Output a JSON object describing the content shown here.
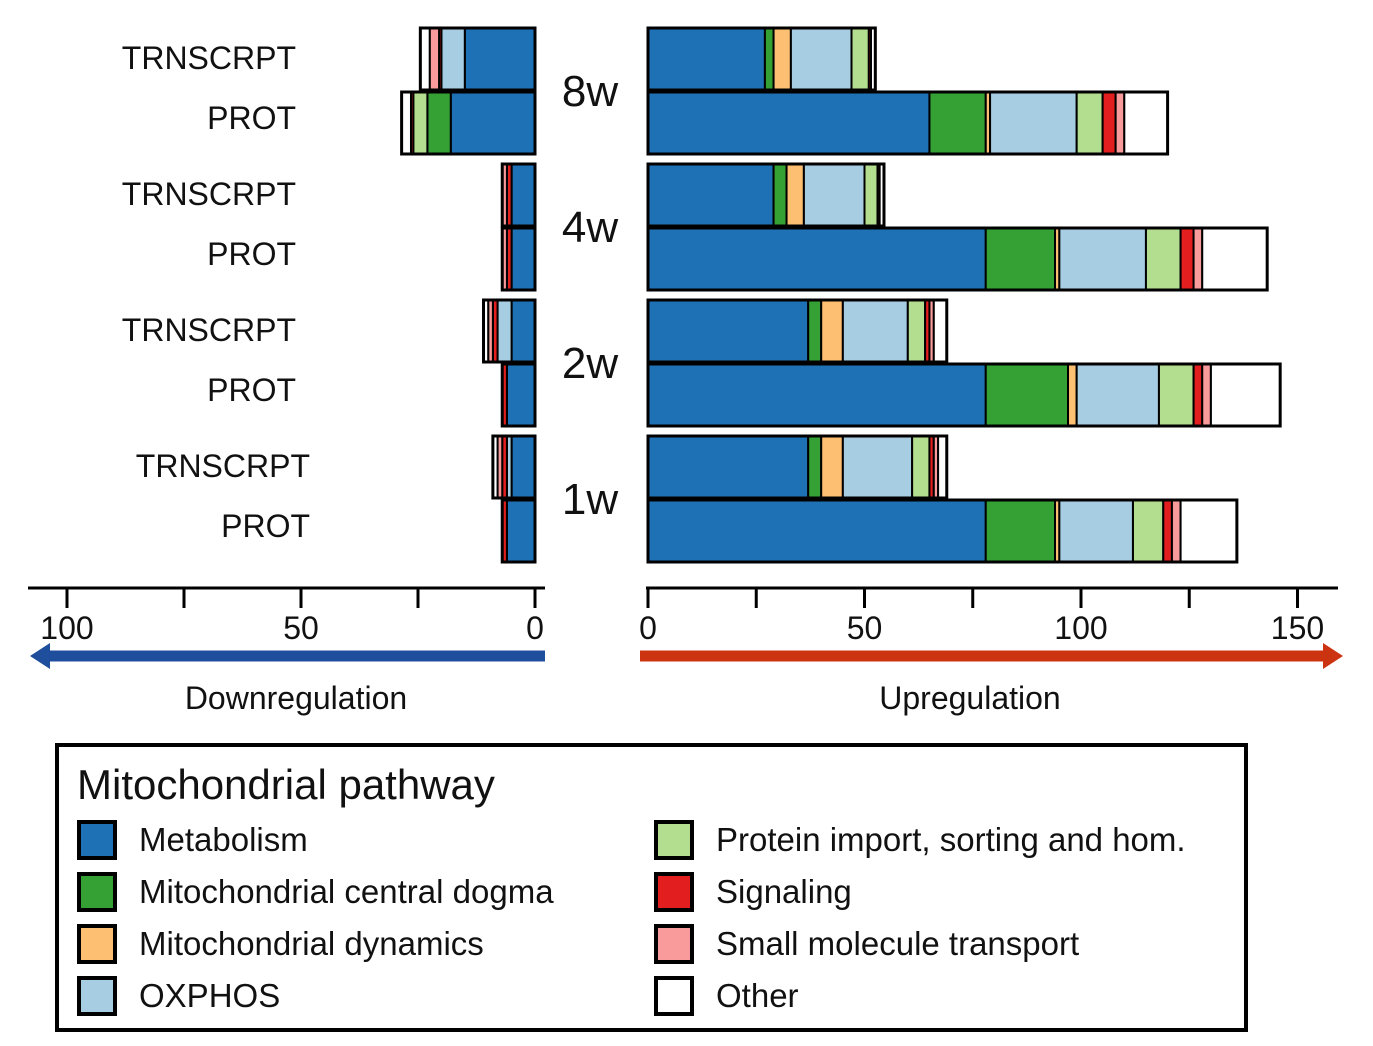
{
  "categories": [
    {
      "key": "metabolism",
      "label": "Metabolism",
      "color": "#1f71b6"
    },
    {
      "key": "central_dogma",
      "label": "Mitochondrial central dogma",
      "color": "#35a135"
    },
    {
      "key": "dynamics",
      "label": "Mitochondrial dynamics",
      "color": "#fdbf72"
    },
    {
      "key": "oxphos",
      "label": "OXPHOS",
      "color": "#a7cde3"
    },
    {
      "key": "protein_import",
      "label": "Protein import, sorting and hom.",
      "color": "#b3de8f"
    },
    {
      "key": "signaling",
      "label": "Signaling",
      "color": "#e31e1e"
    },
    {
      "key": "small_molecule",
      "label": "Small molecule transport",
      "color": "#f99b9b"
    },
    {
      "key": "other",
      "label": "Other",
      "color": "#ffffff"
    }
  ],
  "chart_data": {
    "type": "bar",
    "orientation": "horizontal-stacked-diverging",
    "time_points": [
      "8w",
      "4w",
      "2w",
      "1w"
    ],
    "row_types": [
      "TRNSCRPT",
      "PROT"
    ],
    "down_axis": {
      "label": "Downregulation",
      "ticks": [
        100,
        50,
        0
      ],
      "range": [
        0,
        100
      ],
      "arrow_color": "#1f4e9c"
    },
    "up_axis": {
      "label": "Upregulation",
      "ticks": [
        0,
        50,
        100,
        150
      ],
      "range": [
        0,
        150
      ],
      "arrow_color": "#cc3311"
    },
    "series_order": [
      "metabolism",
      "central_dogma",
      "dynamics",
      "oxphos",
      "protein_import",
      "signaling",
      "small_molecule",
      "other"
    ],
    "rows": [
      {
        "time": "8w",
        "type": "TRNSCRPT",
        "down": {
          "metabolism": 15,
          "central_dogma": 0,
          "dynamics": 0,
          "oxphos": 5,
          "protein_import": 0,
          "signaling": 0.5,
          "small_molecule": 2,
          "other": 2
        },
        "up": {
          "metabolism": 27,
          "central_dogma": 2,
          "dynamics": 4,
          "oxphos": 14,
          "protein_import": 4,
          "signaling": 0.5,
          "small_molecule": 0,
          "other": 1
        }
      },
      {
        "time": "8w",
        "type": "PROT",
        "down": {
          "metabolism": 18,
          "central_dogma": 5,
          "dynamics": 0,
          "oxphos": 0,
          "protein_import": 3,
          "signaling": 0.5,
          "small_molecule": 0,
          "other": 2
        },
        "up": {
          "metabolism": 65,
          "central_dogma": 13,
          "dynamics": 1,
          "oxphos": 20,
          "protein_import": 6,
          "signaling": 3,
          "small_molecule": 2,
          "other": 10
        }
      },
      {
        "time": "4w",
        "type": "TRNSCRPT",
        "down": {
          "metabolism": 5,
          "central_dogma": 0,
          "dynamics": 0,
          "oxphos": 0,
          "protein_import": 0,
          "signaling": 1,
          "small_molecule": 1,
          "other": 0
        },
        "up": {
          "metabolism": 29,
          "central_dogma": 3,
          "dynamics": 4,
          "oxphos": 14,
          "protein_import": 3,
          "signaling": 0.5,
          "small_molecule": 0,
          "other": 1
        }
      },
      {
        "time": "4w",
        "type": "PROT",
        "down": {
          "metabolism": 5,
          "central_dogma": 0,
          "dynamics": 0,
          "oxphos": 0,
          "protein_import": 0,
          "signaling": 1,
          "small_molecule": 1,
          "other": 0
        },
        "up": {
          "metabolism": 78,
          "central_dogma": 16,
          "dynamics": 1,
          "oxphos": 20,
          "protein_import": 8,
          "signaling": 3,
          "small_molecule": 2,
          "other": 15
        }
      },
      {
        "time": "2w",
        "type": "TRNSCRPT",
        "down": {
          "metabolism": 5,
          "central_dogma": 0,
          "dynamics": 0,
          "oxphos": 3,
          "protein_import": 0,
          "signaling": 1,
          "small_molecule": 1,
          "other": 1
        },
        "up": {
          "metabolism": 37,
          "central_dogma": 3,
          "dynamics": 5,
          "oxphos": 15,
          "protein_import": 4,
          "signaling": 1,
          "small_molecule": 1,
          "other": 3
        }
      },
      {
        "time": "2w",
        "type": "PROT",
        "down": {
          "metabolism": 6,
          "central_dogma": 0,
          "dynamics": 0,
          "oxphos": 0,
          "protein_import": 0,
          "signaling": 1,
          "small_molecule": 0,
          "other": 0
        },
        "up": {
          "metabolism": 78,
          "central_dogma": 19,
          "dynamics": 2,
          "oxphos": 19,
          "protein_import": 8,
          "signaling": 2,
          "small_molecule": 2,
          "other": 16
        }
      },
      {
        "time": "1w",
        "type": "TRNSCRPT",
        "down": {
          "metabolism": 5,
          "central_dogma": 0,
          "dynamics": 0,
          "oxphos": 1,
          "protein_import": 0,
          "signaling": 1,
          "small_molecule": 1,
          "other": 1
        },
        "up": {
          "metabolism": 37,
          "central_dogma": 3,
          "dynamics": 5,
          "oxphos": 16,
          "protein_import": 4,
          "signaling": 1,
          "small_molecule": 1,
          "other": 2
        }
      },
      {
        "time": "1w",
        "type": "PROT",
        "down": {
          "metabolism": 6,
          "central_dogma": 0,
          "dynamics": 0,
          "oxphos": 0,
          "protein_import": 0,
          "signaling": 1,
          "small_molecule": 0,
          "other": 0
        },
        "up": {
          "metabolism": 78,
          "central_dogma": 16,
          "dynamics": 1,
          "oxphos": 17,
          "protein_import": 7,
          "signaling": 2,
          "small_molecule": 2,
          "other": 13
        }
      }
    ]
  },
  "legend": {
    "title": "Mitochondrial pathway"
  }
}
